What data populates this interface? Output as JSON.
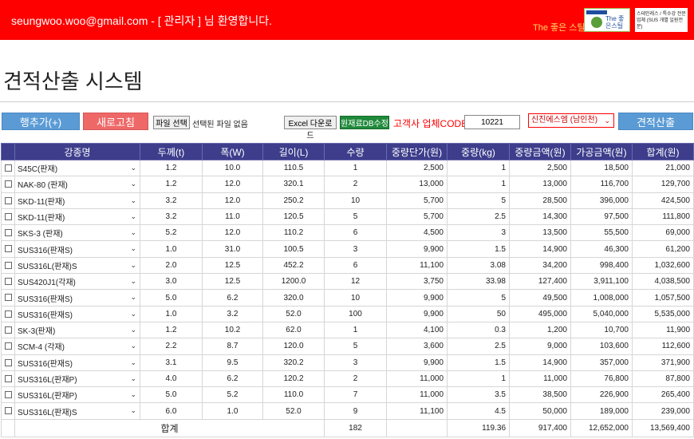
{
  "header": {
    "welcome": "seungwoo.woo@gmail.com - [ 관리자 ] 님 환영합니다.",
    "brand_text": "The 좋은 스틸",
    "logo_name": "The 좋은스틸",
    "brand_desc": "스테인레스 / 특수강 전문업체 (SUS 개별 일원전문)"
  },
  "page_title": "견적산출 시스템",
  "toolbar": {
    "add_row": "행추가(+)",
    "refresh": "새로고침",
    "file_select": "파일 선택",
    "file_status": "선택된 파일 없음",
    "excel_download": "Excel 다운로드",
    "db_edit": "원재료DB수정",
    "code_label": "고객사 업체CODE :",
    "code_value": "10221",
    "company": "신진에스엠 (남인천)",
    "calculate": "견적산출"
  },
  "table": {
    "headers": [
      "",
      "강종명",
      "두께(t)",
      "폭(W)",
      "길이(L)",
      "수량",
      "중량단가(원)",
      "중량(kg)",
      "중량금액(원)",
      "가공금액(원)",
      "합계(원)"
    ],
    "rows": [
      [
        "S45C(판재)",
        "1.2",
        "10.0",
        "110.5",
        "1",
        "2,500",
        "1",
        "2,500",
        "18,500",
        "21,000"
      ],
      [
        "NAK-80 (판재)",
        "1.2",
        "12.0",
        "320.1",
        "2",
        "13,000",
        "1",
        "13,000",
        "116,700",
        "129,700"
      ],
      [
        "SKD-11(판재)",
        "3.2",
        "12.0",
        "250.2",
        "10",
        "5,700",
        "5",
        "28,500",
        "396,000",
        "424,500"
      ],
      [
        "SKD-11(판재)",
        "3.2",
        "11.0",
        "120.5",
        "5",
        "5,700",
        "2.5",
        "14,300",
        "97,500",
        "111,800"
      ],
      [
        "SKS-3 (판재)",
        "5.2",
        "12.0",
        "110.2",
        "6",
        "4,500",
        "3",
        "13,500",
        "55,500",
        "69,000"
      ],
      [
        "SUS316(판재S)",
        "1.0",
        "31.0",
        "100.5",
        "3",
        "9,900",
        "1.5",
        "14,900",
        "46,300",
        "61,200"
      ],
      [
        "SUS316L(판재)S",
        "2.0",
        "12.5",
        "452.2",
        "6",
        "11,100",
        "3.08",
        "34,200",
        "998,400",
        "1,032,600"
      ],
      [
        "SUS420J1(각재)",
        "3.0",
        "12.5",
        "1200.0",
        "12",
        "3,750",
        "33.98",
        "127,400",
        "3,911,100",
        "4,038,500"
      ],
      [
        "SUS316(판재S)",
        "5.0",
        "6.2",
        "320.0",
        "10",
        "9,900",
        "5",
        "49,500",
        "1,008,000",
        "1,057,500"
      ],
      [
        "SUS316(판재S)",
        "1.0",
        "3.2",
        "52.0",
        "100",
        "9,900",
        "50",
        "495,000",
        "5,040,000",
        "5,535,000"
      ],
      [
        "SK-3(판재)",
        "1.2",
        "10.2",
        "62.0",
        "1",
        "4,100",
        "0.3",
        "1,200",
        "10,700",
        "11,900"
      ],
      [
        "SCM-4 (각재)",
        "2.2",
        "8.7",
        "120.0",
        "5",
        "3,600",
        "2.5",
        "9,000",
        "103,600",
        "112,600"
      ],
      [
        "SUS316(판재S)",
        "3.1",
        "9.5",
        "320.2",
        "3",
        "9,900",
        "1.5",
        "14,900",
        "357,000",
        "371,900"
      ],
      [
        "SUS316L(판재P)",
        "4.0",
        "6.2",
        "120.2",
        "2",
        "11,000",
        "1",
        "11,000",
        "76,800",
        "87,800"
      ],
      [
        "SUS316L(판재P)",
        "5.0",
        "5.2",
        "110.0",
        "7",
        "11,000",
        "3.5",
        "38,500",
        "226,900",
        "265,400"
      ],
      [
        "SUS316L(판재)S",
        "6.0",
        "1.0",
        "52.0",
        "9",
        "11,100",
        "4.5",
        "50,000",
        "189,000",
        "239,000"
      ]
    ],
    "total": {
      "label": "합계",
      "qty": "182",
      "weight": "119.36",
      "weight_amount": "917,400",
      "process_amount": "12,652,000",
      "sum": "13,569,400"
    }
  }
}
